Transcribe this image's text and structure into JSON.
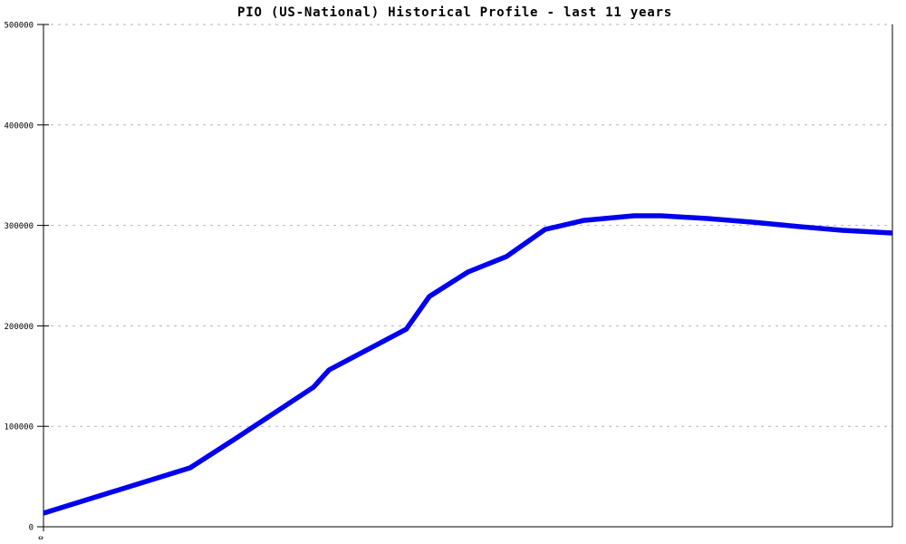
{
  "title": "PIO (US-National) Historical Profile - last 11 years",
  "colors": {
    "background": "#ffffff",
    "line": "#0000ee",
    "grid": "#b5b5b5",
    "axis": "#000000",
    "text": "#000000"
  },
  "y_axis": {
    "ticks": [
      {
        "label": "0",
        "value": 0
      },
      {
        "label": "100000",
        "value": 100000
      },
      {
        "label": "200000",
        "value": 200000
      },
      {
        "label": "300000",
        "value": 300000
      },
      {
        "label": "400000",
        "value": 400000
      },
      {
        "label": "500000",
        "value": 500000
      }
    ]
  },
  "x_axis": {
    "origin_label": "0"
  },
  "chart_data": {
    "type": "line",
    "title": "PIO (US-National) Historical Profile - last 11 years",
    "xlabel": "",
    "ylabel": "",
    "xlim": [
      0,
      11
    ],
    "ylim": [
      0,
      500000
    ],
    "x_unit": "years (relative, spanning last 11 years; only origin tick labeled)",
    "grid": "horizontal dotted gridlines every 100000",
    "legend": "none",
    "series": [
      {
        "name": "PIO (US-National)",
        "color": "#0000ee",
        "points": [
          {
            "x": 0.0,
            "y": 13500
          },
          {
            "x": 1.9,
            "y": 58700
          },
          {
            "x": 2.5,
            "y": 88400
          },
          {
            "x": 3.5,
            "y": 139000
          },
          {
            "x": 3.7,
            "y": 156100
          },
          {
            "x": 4.7,
            "y": 196700
          },
          {
            "x": 5.0,
            "y": 229200
          },
          {
            "x": 5.5,
            "y": 253600
          },
          {
            "x": 6.0,
            "y": 269000
          },
          {
            "x": 6.5,
            "y": 296000
          },
          {
            "x": 7.0,
            "y": 305000
          },
          {
            "x": 7.65,
            "y": 309600
          },
          {
            "x": 8.0,
            "y": 309600
          },
          {
            "x": 8.6,
            "y": 306900
          },
          {
            "x": 9.2,
            "y": 303200
          },
          {
            "x": 9.8,
            "y": 298700
          },
          {
            "x": 10.35,
            "y": 295100
          },
          {
            "x": 11.0,
            "y": 292400
          }
        ]
      }
    ]
  }
}
